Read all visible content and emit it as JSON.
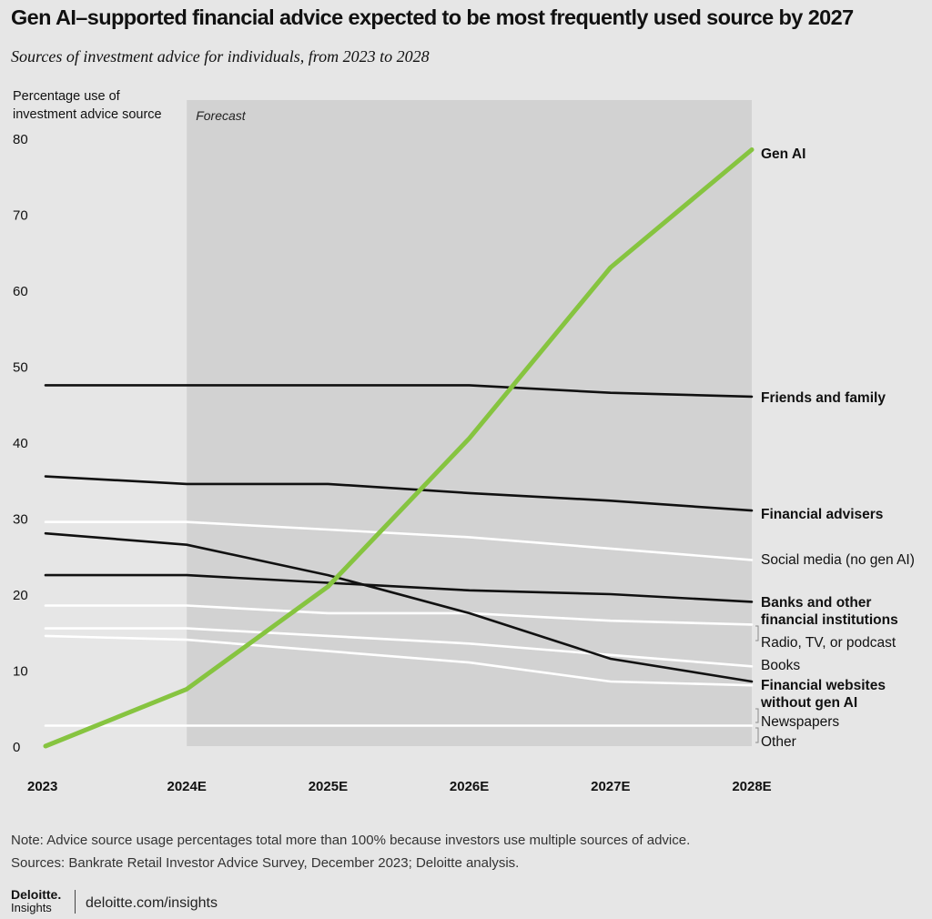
{
  "header": {
    "title": "Gen AI–supported financial advice expected to be most frequently used source by 2027",
    "subtitle": "Sources of investment advice for individuals, from 2023 to 2028"
  },
  "chart_data": {
    "type": "line",
    "ylabel": [
      "Percentage use of",
      "investment advice source"
    ],
    "x": [
      "2023",
      "2024E",
      "2025E",
      "2026E",
      "2027E",
      "2028E"
    ],
    "ylim": [
      0,
      80
    ],
    "yticks": [
      0,
      10,
      20,
      30,
      40,
      50,
      60,
      70,
      80
    ],
    "forecast_label": "Forecast",
    "forecast_start": "2024E",
    "series": [
      {
        "name": "Gen AI",
        "values": [
          0,
          7.5,
          21,
          40.5,
          63,
          78.5
        ],
        "color": "#86c440",
        "bold": true
      },
      {
        "name": "Friends and family",
        "values": [
          47.5,
          47.5,
          47.5,
          47.5,
          46.5,
          46
        ],
        "color": "#111111",
        "bold": true
      },
      {
        "name": "Financial advisers",
        "values": [
          35.5,
          34.5,
          34.5,
          33.3,
          32.3,
          31
        ],
        "color": "#111111",
        "bold": true
      },
      {
        "name": "Social media (no gen AI)",
        "values": [
          29.5,
          29.5,
          28.5,
          27.5,
          26,
          24.5
        ],
        "color": "#ffffff",
        "bold": false
      },
      {
        "name": "Banks and other financial institutions",
        "values": [
          22.5,
          22.5,
          21.5,
          20.5,
          20,
          19
        ],
        "color": "#111111",
        "bold": true
      },
      {
        "name": "Radio, TV, or podcast",
        "values": [
          18.5,
          18.5,
          17.5,
          17.5,
          16.5,
          16
        ],
        "color": "#ffffff",
        "bold": false
      },
      {
        "name": "Books",
        "values": [
          15.5,
          15.5,
          14.5,
          13.5,
          12,
          10.5
        ],
        "color": "#ffffff",
        "bold": false
      },
      {
        "name": "Financial websites without gen AI",
        "values": [
          28,
          26.5,
          22.5,
          17.5,
          11.5,
          8.5
        ],
        "color": "#111111",
        "bold": true
      },
      {
        "name": "Newspapers",
        "values": [
          14.5,
          14,
          12.5,
          11,
          8.5,
          8
        ],
        "color": "#ffffff",
        "bold": false
      },
      {
        "name": "Other",
        "values": [
          2.7,
          2.7,
          2.7,
          2.7,
          2.7,
          2.7
        ],
        "color": "#ffffff",
        "bold": false
      }
    ],
    "series_labels": [
      {
        "series": "Gen AI",
        "lines": [
          "Gen AI"
        ]
      },
      {
        "series": "Friends and family",
        "lines": [
          "Friends and family"
        ]
      },
      {
        "series": "Financial advisers",
        "lines": [
          "Financial advisers"
        ]
      },
      {
        "series": "Social media (no gen AI)",
        "lines": [
          "Social media (no gen AI)"
        ]
      },
      {
        "series": "Banks and other financial institutions",
        "lines": [
          "Banks and other",
          "financial institutions"
        ]
      },
      {
        "series": "Radio, TV, or podcast",
        "lines": [
          "Radio, TV, or podcast"
        ]
      },
      {
        "series": "Books",
        "lines": [
          "Books"
        ]
      },
      {
        "series": "Financial websites without gen AI",
        "lines": [
          "Financial websites",
          "without gen AI"
        ]
      },
      {
        "series": "Newspapers",
        "lines": [
          "Newspapers"
        ]
      },
      {
        "series": "Other",
        "lines": [
          "Other"
        ]
      }
    ]
  },
  "footer": {
    "note": "Note: Advice source usage percentages total more than 100% because investors use multiple sources of advice.",
    "sources": "Sources: Bankrate Retail Investor Advice Survey, December 2023; Deloitte analysis.",
    "brand_name": "Deloitte.",
    "brand_sub": "Insights",
    "url": "deloitte.com/insights"
  }
}
